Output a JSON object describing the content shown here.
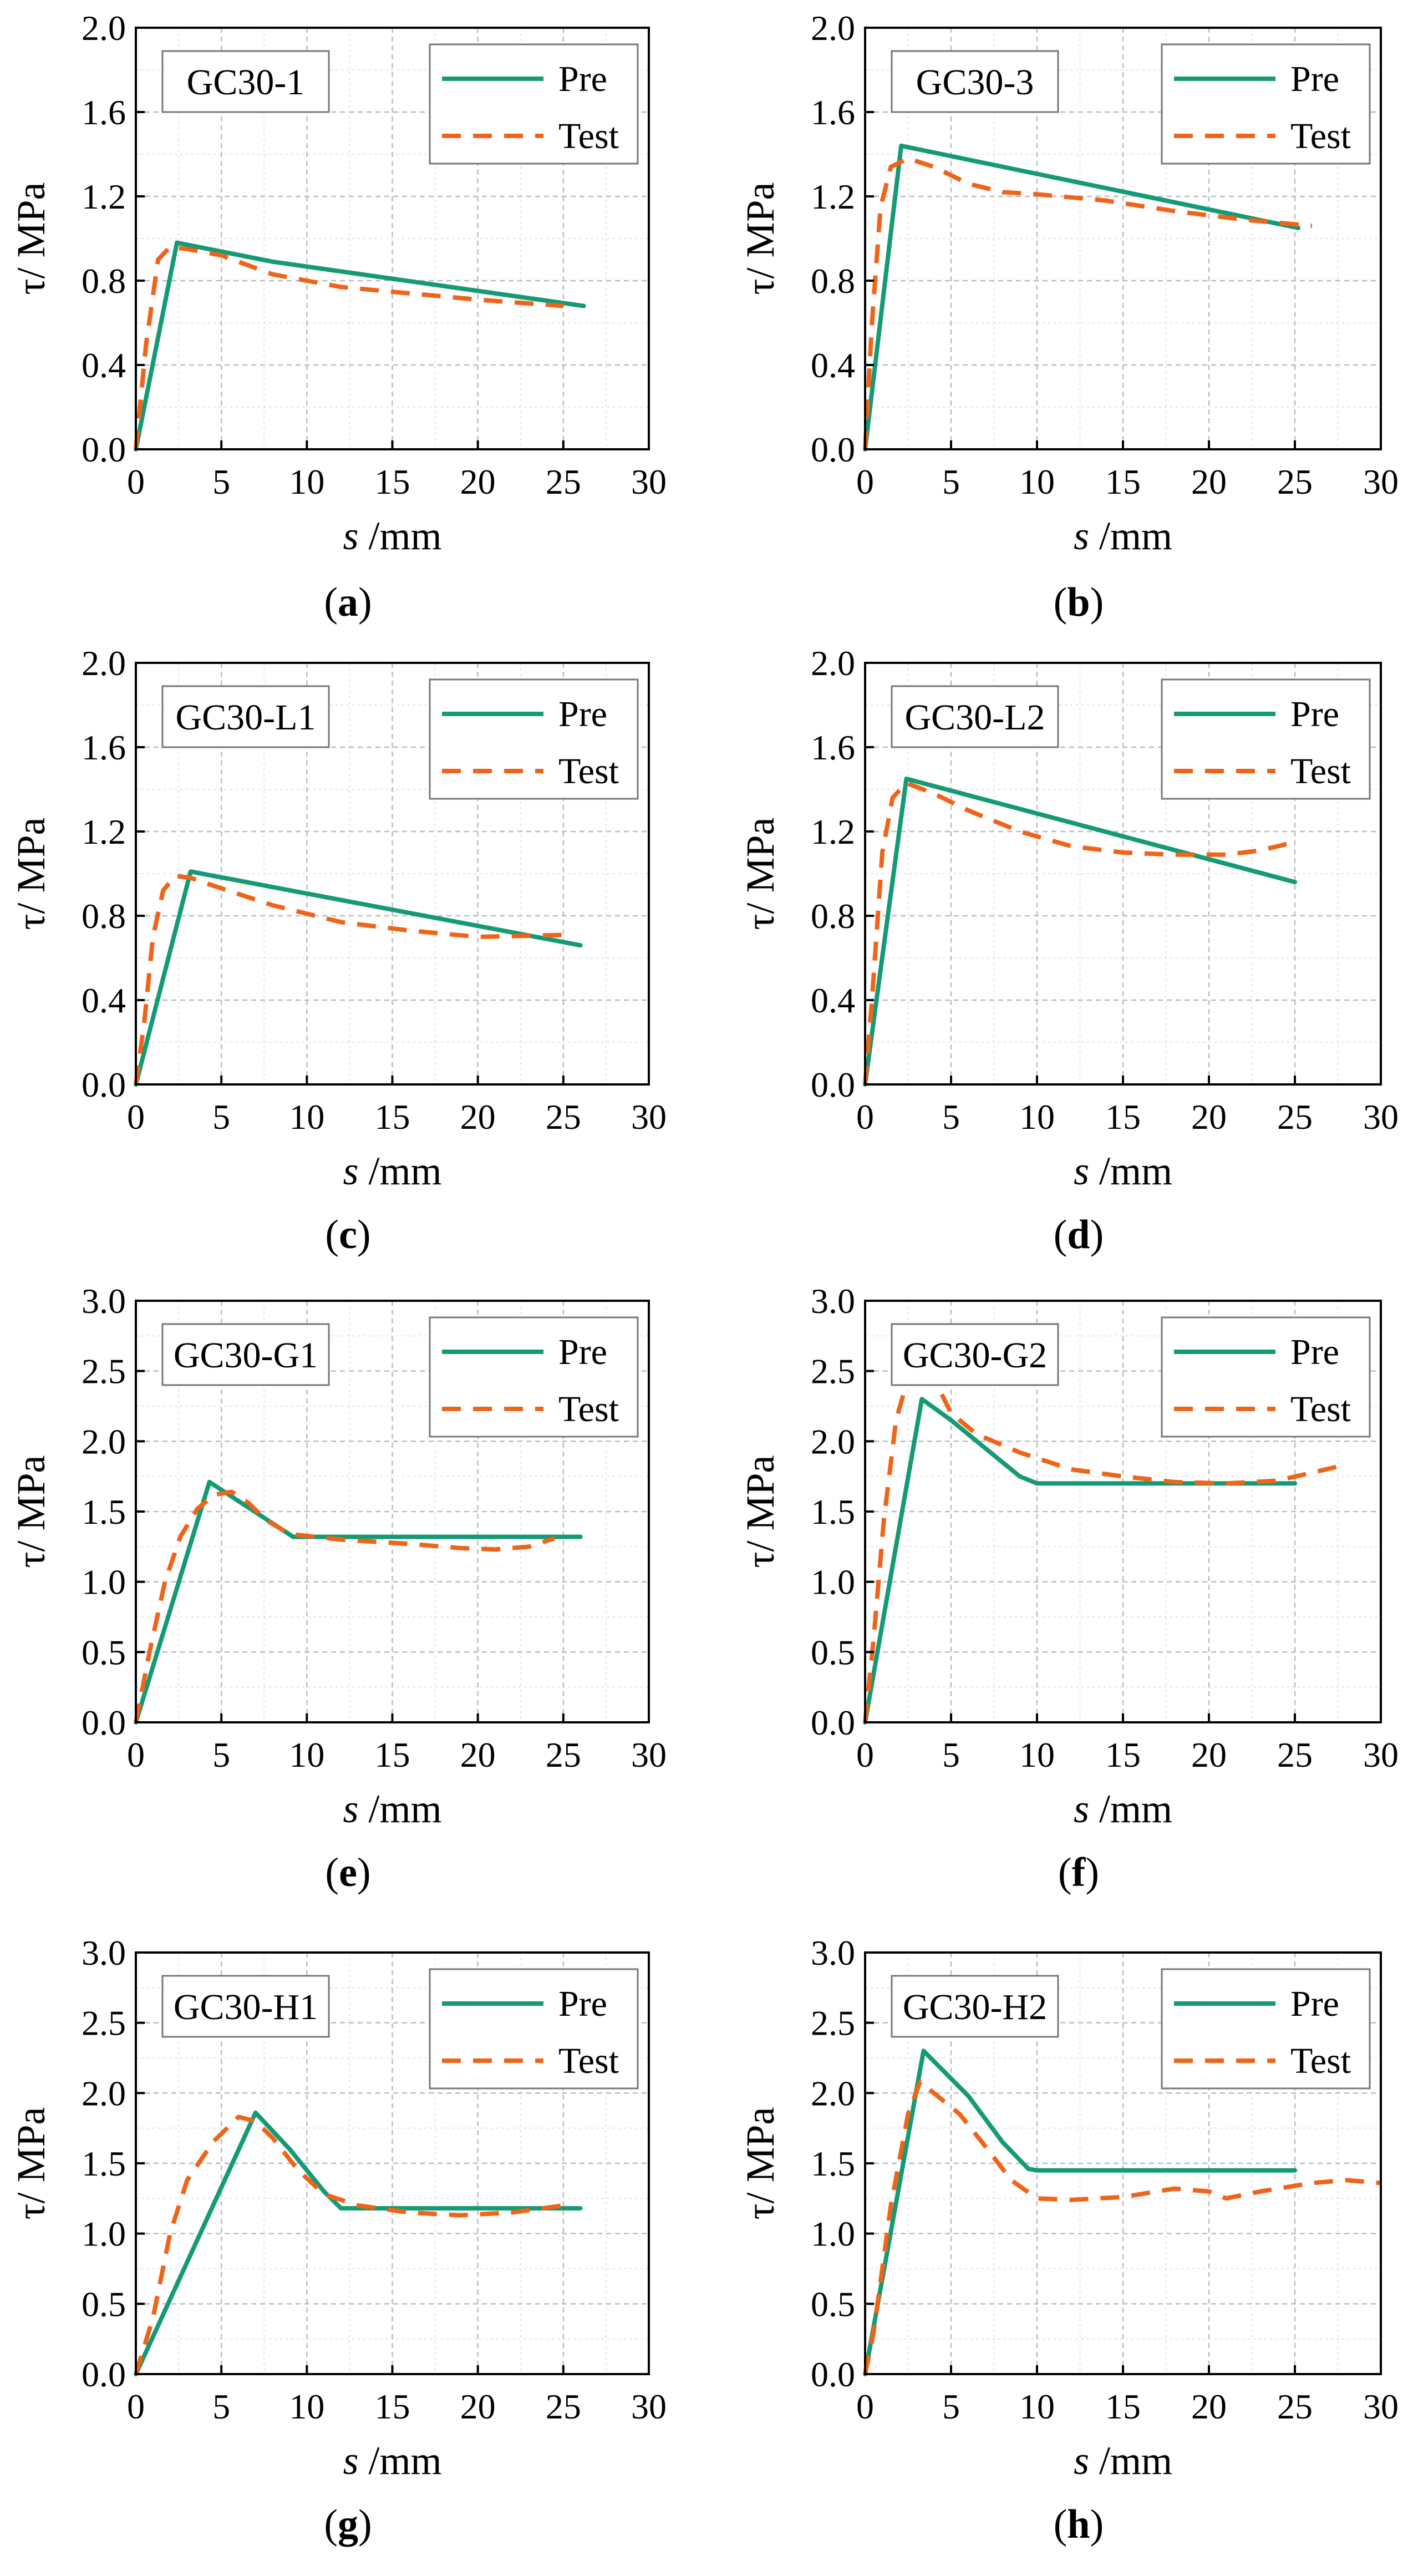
{
  "colors": {
    "pre": "#149a74",
    "test": "#ef6418",
    "axis": "#000000",
    "grid": "#bdbdbd",
    "minor_grid": "#e3e3e3"
  },
  "legend_labels": {
    "pre": "Pre",
    "test": "Test"
  },
  "chart_data": [
    {
      "type": "line",
      "panel": "a",
      "caption": "(a)",
      "specimen": "GC30-1",
      "xlabel_italic": "s",
      "xlabel_unit": " /mm",
      "ylabel": "τ/ MPa",
      "xlim": [
        0,
        30
      ],
      "ylim": [
        0,
        2.0
      ],
      "xticks": [
        0,
        5,
        10,
        15,
        20,
        25,
        30
      ],
      "yticks": [
        0.0,
        0.4,
        0.8,
        1.2,
        1.6,
        2.0
      ],
      "ytick_labels": [
        "0.0",
        "0.4",
        "0.8",
        "1.2",
        "1.6",
        "2.0"
      ],
      "series": [
        {
          "name": "Pre",
          "style": "solid",
          "points": [
            [
              0,
              0
            ],
            [
              2.4,
              0.98
            ],
            [
              8,
              0.89
            ],
            [
              26.2,
              0.68
            ]
          ]
        },
        {
          "name": "Test",
          "style": "dashed",
          "points": [
            [
              0,
              0
            ],
            [
              0.6,
              0.5
            ],
            [
              1.3,
              0.9
            ],
            [
              2.0,
              0.96
            ],
            [
              3.0,
              0.95
            ],
            [
              5,
              0.92
            ],
            [
              8,
              0.83
            ],
            [
              12,
              0.77
            ],
            [
              16,
              0.74
            ],
            [
              20,
              0.71
            ],
            [
              25,
              0.68
            ]
          ]
        }
      ]
    },
    {
      "type": "line",
      "panel": "b",
      "caption": "(b)",
      "specimen": "GC30-3",
      "xlabel_italic": "s",
      "xlabel_unit": " /mm",
      "ylabel": "τ/ MPa",
      "xlim": [
        0,
        30
      ],
      "ylim": [
        0,
        2.0
      ],
      "xticks": [
        0,
        5,
        10,
        15,
        20,
        25,
        30
      ],
      "yticks": [
        0.0,
        0.4,
        0.8,
        1.2,
        1.6,
        2.0
      ],
      "ytick_labels": [
        "0.0",
        "0.4",
        "0.8",
        "1.2",
        "1.6",
        "2.0"
      ],
      "series": [
        {
          "name": "Pre",
          "style": "solid",
          "points": [
            [
              0,
              0
            ],
            [
              2.1,
              1.44
            ],
            [
              25.2,
              1.05
            ]
          ]
        },
        {
          "name": "Test",
          "style": "dashed",
          "points": [
            [
              0,
              0
            ],
            [
              0.4,
              0.6
            ],
            [
              0.9,
              1.15
            ],
            [
              1.5,
              1.34
            ],
            [
              2.5,
              1.38
            ],
            [
              4,
              1.34
            ],
            [
              6,
              1.26
            ],
            [
              8,
              1.22
            ],
            [
              10,
              1.21
            ],
            [
              14,
              1.18
            ],
            [
              18,
              1.13
            ],
            [
              22,
              1.09
            ],
            [
              26,
              1.06
            ]
          ]
        }
      ]
    },
    {
      "type": "line",
      "panel": "c",
      "caption": "(c)",
      "specimen": "GC30-L1",
      "xlabel_italic": "s",
      "xlabel_unit": " /mm",
      "ylabel": "τ/ MPa",
      "xlim": [
        0,
        30
      ],
      "ylim": [
        0,
        2.0
      ],
      "xticks": [
        0,
        5,
        10,
        15,
        20,
        25,
        30
      ],
      "yticks": [
        0.0,
        0.4,
        0.8,
        1.2,
        1.6,
        2.0
      ],
      "ytick_labels": [
        "0.0",
        "0.4",
        "0.8",
        "1.2",
        "1.6",
        "2.0"
      ],
      "series": [
        {
          "name": "Pre",
          "style": "solid",
          "points": [
            [
              0,
              0
            ],
            [
              3.2,
              1.01
            ],
            [
              26.0,
              0.66
            ]
          ]
        },
        {
          "name": "Test",
          "style": "dashed",
          "points": [
            [
              0,
              0
            ],
            [
              0.5,
              0.3
            ],
            [
              1.0,
              0.7
            ],
            [
              1.6,
              0.92
            ],
            [
              2.3,
              0.99
            ],
            [
              3.2,
              0.98
            ],
            [
              5,
              0.93
            ],
            [
              8,
              0.85
            ],
            [
              12,
              0.77
            ],
            [
              16,
              0.73
            ],
            [
              20,
              0.7
            ],
            [
              25.5,
              0.71
            ]
          ]
        }
      ]
    },
    {
      "type": "line",
      "panel": "d",
      "caption": "(d)",
      "specimen": "GC30-L2",
      "xlabel_italic": "s",
      "xlabel_unit": " /mm",
      "ylabel": "τ/ MPa",
      "xlim": [
        0,
        30
      ],
      "ylim": [
        0,
        2.0
      ],
      "xticks": [
        0,
        5,
        10,
        15,
        20,
        25,
        30
      ],
      "yticks": [
        0.0,
        0.4,
        0.8,
        1.2,
        1.6,
        2.0
      ],
      "ytick_labels": [
        "0.0",
        "0.4",
        "0.8",
        "1.2",
        "1.6",
        "2.0"
      ],
      "series": [
        {
          "name": "Pre",
          "style": "solid",
          "points": [
            [
              0,
              0
            ],
            [
              2.4,
              1.45
            ],
            [
              25.0,
              0.96
            ]
          ]
        },
        {
          "name": "Test",
          "style": "dashed",
          "points": [
            [
              0,
              0
            ],
            [
              0.4,
              0.4
            ],
            [
              1.0,
              1.1
            ],
            [
              1.6,
              1.36
            ],
            [
              2.4,
              1.43
            ],
            [
              4,
              1.38
            ],
            [
              6,
              1.3
            ],
            [
              9,
              1.2
            ],
            [
              12,
              1.13
            ],
            [
              15,
              1.1
            ],
            [
              18,
              1.09
            ],
            [
              21,
              1.09
            ],
            [
              23,
              1.11
            ],
            [
              25,
              1.15
            ]
          ]
        }
      ]
    },
    {
      "type": "line",
      "panel": "e",
      "caption": "(e)",
      "specimen": "GC30-G1",
      "xlabel_italic": "s",
      "xlabel_unit": " /mm",
      "ylabel": "τ/ MPa",
      "xlim": [
        0,
        30
      ],
      "ylim": [
        0,
        3.0
      ],
      "xticks": [
        0,
        5,
        10,
        15,
        20,
        25,
        30
      ],
      "yticks": [
        0.0,
        0.5,
        1.0,
        1.5,
        2.0,
        2.5,
        3.0
      ],
      "ytick_labels": [
        "0.0",
        "0.5",
        "1.0",
        "1.5",
        "2.0",
        "2.5",
        "3.0"
      ],
      "series": [
        {
          "name": "Pre",
          "style": "solid",
          "points": [
            [
              0,
              0
            ],
            [
              4.3,
              1.71
            ],
            [
              9.2,
              1.32
            ],
            [
              26.0,
              1.32
            ]
          ]
        },
        {
          "name": "Test",
          "style": "dashed",
          "points": [
            [
              0,
              0
            ],
            [
              0.8,
              0.5
            ],
            [
              1.7,
              1.0
            ],
            [
              2.6,
              1.32
            ],
            [
              3.6,
              1.52
            ],
            [
              4.6,
              1.62
            ],
            [
              5.6,
              1.64
            ],
            [
              6.6,
              1.56
            ],
            [
              7.6,
              1.44
            ],
            [
              9.0,
              1.34
            ],
            [
              12,
              1.3
            ],
            [
              16,
              1.27
            ],
            [
              19,
              1.24
            ],
            [
              21,
              1.23
            ],
            [
              23,
              1.25
            ],
            [
              24.5,
              1.31
            ]
          ]
        }
      ]
    },
    {
      "type": "line",
      "panel": "f",
      "caption": "(f)",
      "specimen": "GC30-G2",
      "xlabel_italic": "s",
      "xlabel_unit": " /mm",
      "ylabel": "τ/ MPa",
      "xlim": [
        0,
        30
      ],
      "ylim": [
        0,
        3.0
      ],
      "xticks": [
        0,
        5,
        10,
        15,
        20,
        25,
        30
      ],
      "yticks": [
        0.0,
        0.5,
        1.0,
        1.5,
        2.0,
        2.5,
        3.0
      ],
      "ytick_labels": [
        "0.0",
        "0.5",
        "1.0",
        "1.5",
        "2.0",
        "2.5",
        "3.0"
      ],
      "series": [
        {
          "name": "Pre",
          "style": "solid",
          "points": [
            [
              0,
              0
            ],
            [
              3.3,
              2.3
            ],
            [
              5,
              2.15
            ],
            [
              7,
              1.95
            ],
            [
              9,
              1.75
            ],
            [
              10,
              1.7
            ],
            [
              25.0,
              1.7
            ]
          ]
        },
        {
          "name": "Test",
          "style": "dashed",
          "points": [
            [
              0,
              0
            ],
            [
              0.5,
              0.6
            ],
            [
              1.1,
              1.45
            ],
            [
              1.8,
              2.15
            ],
            [
              2.5,
              2.45
            ],
            [
              3.3,
              2.55
            ],
            [
              4.0,
              2.45
            ],
            [
              5.0,
              2.2
            ],
            [
              6.5,
              2.05
            ],
            [
              9,
              1.92
            ],
            [
              12,
              1.8
            ],
            [
              15,
              1.75
            ],
            [
              18,
              1.71
            ],
            [
              21,
              1.7
            ],
            [
              24,
              1.72
            ],
            [
              27.5,
              1.82
            ]
          ]
        }
      ]
    },
    {
      "type": "line",
      "panel": "g",
      "caption": "(g)",
      "specimen": "GC30-H1",
      "xlabel_italic": "s",
      "xlabel_unit": " /mm",
      "ylabel": "τ/ MPa",
      "xlim": [
        0,
        30
      ],
      "ylim": [
        0,
        3.0
      ],
      "xticks": [
        0,
        5,
        10,
        15,
        20,
        25,
        30
      ],
      "yticks": [
        0.0,
        0.5,
        1.0,
        1.5,
        2.0,
        2.5,
        3.0
      ],
      "ytick_labels": [
        "0.0",
        "0.5",
        "1.0",
        "1.5",
        "2.0",
        "2.5",
        "3.0"
      ],
      "series": [
        {
          "name": "Pre",
          "style": "solid",
          "points": [
            [
              0,
              0
            ],
            [
              7.0,
              1.86
            ],
            [
              9,
              1.6
            ],
            [
              11,
              1.3
            ],
            [
              12,
              1.18
            ],
            [
              26.0,
              1.18
            ]
          ]
        },
        {
          "name": "Test",
          "style": "dashed",
          "points": [
            [
              0,
              0
            ],
            [
              1,
              0.4
            ],
            [
              2,
              1.0
            ],
            [
              3,
              1.38
            ],
            [
              4.5,
              1.65
            ],
            [
              6,
              1.83
            ],
            [
              7,
              1.8
            ],
            [
              8,
              1.68
            ],
            [
              9.5,
              1.45
            ],
            [
              11,
              1.28
            ],
            [
              13,
              1.2
            ],
            [
              16,
              1.15
            ],
            [
              19,
              1.13
            ],
            [
              22,
              1.15
            ],
            [
              25,
              1.2
            ]
          ]
        }
      ]
    },
    {
      "type": "line",
      "panel": "h",
      "caption": "(h)",
      "specimen": "GC30-H2",
      "xlabel_italic": "s",
      "xlabel_unit": " /mm",
      "ylabel": "τ/ MPa",
      "xlim": [
        0,
        30
      ],
      "ylim": [
        0,
        3.0
      ],
      "xticks": [
        0,
        5,
        10,
        15,
        20,
        25,
        30
      ],
      "yticks": [
        0.0,
        0.5,
        1.0,
        1.5,
        2.0,
        2.5,
        3.0
      ],
      "ytick_labels": [
        "0.0",
        "0.5",
        "1.0",
        "1.5",
        "2.0",
        "2.5",
        "3.0"
      ],
      "series": [
        {
          "name": "Pre",
          "style": "solid",
          "points": [
            [
              0,
              0
            ],
            [
              3.4,
              2.3
            ],
            [
              6,
              1.98
            ],
            [
              8,
              1.65
            ],
            [
              9.5,
              1.46
            ],
            [
              10,
              1.45
            ],
            [
              25.0,
              1.45
            ]
          ]
        },
        {
          "name": "Test",
          "style": "dashed",
          "points": [
            [
              0,
              0
            ],
            [
              0.5,
              0.3
            ],
            [
              1.5,
              1.2
            ],
            [
              2.5,
              1.85
            ],
            [
              3.2,
              2.08
            ],
            [
              4,
              2.0
            ],
            [
              5.5,
              1.85
            ],
            [
              7,
              1.62
            ],
            [
              8.5,
              1.38
            ],
            [
              10,
              1.25
            ],
            [
              12,
              1.24
            ],
            [
              15,
              1.26
            ],
            [
              18,
              1.32
            ],
            [
              20,
              1.3
            ],
            [
              21,
              1.25
            ],
            [
              23,
              1.3
            ],
            [
              26,
              1.36
            ],
            [
              28,
              1.38
            ],
            [
              30,
              1.36
            ]
          ]
        }
      ]
    }
  ]
}
